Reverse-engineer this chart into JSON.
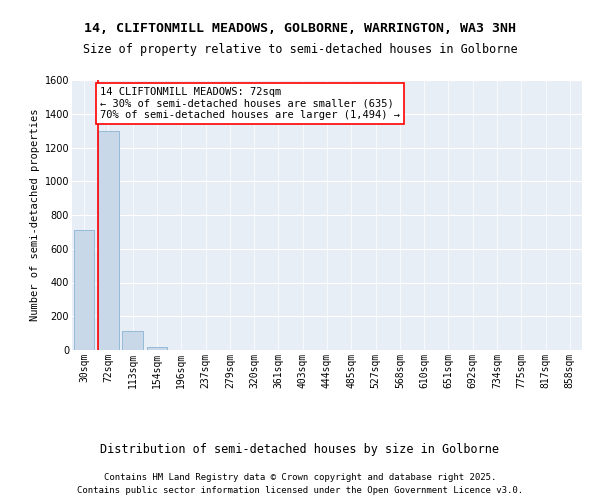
{
  "title": "14, CLIFTONMILL MEADOWS, GOLBORNE, WARRINGTON, WA3 3NH",
  "subtitle": "Size of property relative to semi-detached houses in Golborne",
  "xlabel": "Distribution of semi-detached houses by size in Golborne",
  "ylabel": "Number of semi-detached properties",
  "bar_color": "#c8d8e8",
  "bar_edge_color": "#8ab4d4",
  "background_color": "#e8eef6",
  "grid_color": "#ffffff",
  "categories": [
    "30sqm",
    "72sqm",
    "113sqm",
    "154sqm",
    "196sqm",
    "237sqm",
    "279sqm",
    "320sqm",
    "361sqm",
    "403sqm",
    "444sqm",
    "485sqm",
    "527sqm",
    "568sqm",
    "610sqm",
    "651sqm",
    "692sqm",
    "734sqm",
    "775sqm",
    "817sqm",
    "858sqm"
  ],
  "values": [
    710,
    1300,
    113,
    18,
    0,
    0,
    0,
    0,
    0,
    0,
    0,
    0,
    0,
    0,
    0,
    0,
    0,
    0,
    0,
    0,
    0
  ],
  "ylim": [
    0,
    1600
  ],
  "yticks": [
    0,
    200,
    400,
    600,
    800,
    1000,
    1200,
    1400,
    1600
  ],
  "annotation_text": "14 CLIFTONMILL MEADOWS: 72sqm\n← 30% of semi-detached houses are smaller (635)\n70% of semi-detached houses are larger (1,494) →",
  "red_line_bar_index": 1,
  "footer_line1": "Contains HM Land Registry data © Crown copyright and database right 2025.",
  "footer_line2": "Contains public sector information licensed under the Open Government Licence v3.0.",
  "title_fontsize": 9.5,
  "subtitle_fontsize": 8.5,
  "xlabel_fontsize": 8.5,
  "ylabel_fontsize": 7.5,
  "tick_fontsize": 7,
  "annotation_fontsize": 7.5,
  "footer_fontsize": 6.5
}
